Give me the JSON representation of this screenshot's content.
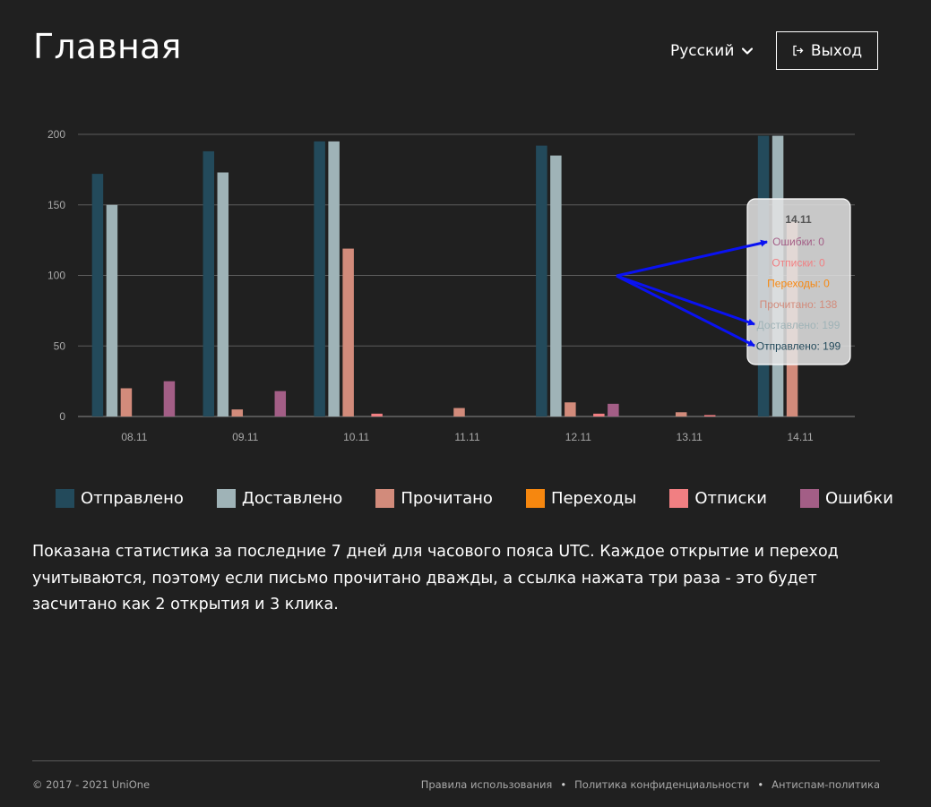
{
  "header": {
    "title": "Главная",
    "language_label": "Русский",
    "logout_label": "Выход"
  },
  "chart_data": {
    "type": "bar",
    "categories": [
      "08.11",
      "09.11",
      "10.11",
      "11.11",
      "12.11",
      "13.11",
      "14.11"
    ],
    "series": [
      {
        "name": "Отправлено",
        "color": "#234a5b",
        "values": [
          172,
          188,
          195,
          0,
          192,
          0,
          199
        ]
      },
      {
        "name": "Доставлено",
        "color": "#9fb3b7",
        "values": [
          150,
          173,
          195,
          0,
          185,
          0,
          199
        ]
      },
      {
        "name": "Прочитано",
        "color": "#d28b7b",
        "values": [
          20,
          5,
          119,
          6,
          10,
          3,
          138
        ]
      },
      {
        "name": "Переходы",
        "color": "#f6870f",
        "values": [
          0,
          0,
          0,
          0,
          0,
          0,
          0
        ]
      },
      {
        "name": "Отписки",
        "color": "#f17f82",
        "values": [
          0,
          0,
          2,
          0,
          2,
          1,
          0
        ]
      },
      {
        "name": "Ошибки",
        "color": "#a35e86",
        "values": [
          25,
          18,
          0,
          0,
          9,
          0,
          0
        ]
      }
    ],
    "y_ticks": [
      "0",
      "50",
      "100",
      "150",
      "200"
    ],
    "ylim": [
      0,
      200
    ],
    "grid": true,
    "legend_position": "bottom",
    "tooltip": {
      "title": "14.11",
      "rows": [
        {
          "label": "Ошибки",
          "value": "0",
          "color": "#a35e86"
        },
        {
          "label": "Отписки",
          "value": "0",
          "color": "#f17f82"
        },
        {
          "label": "Переходы",
          "value": "0",
          "color": "#f6870f"
        },
        {
          "label": "Прочитано",
          "value": "138",
          "color": "#d28b7b"
        },
        {
          "label": "Доставлено",
          "value": "199",
          "color": "#9fb3b7"
        },
        {
          "label": "Отправлено",
          "value": "199",
          "color": "#234a5b"
        }
      ]
    }
  },
  "description": "Показана статистика за последние 7 дней для часового пояса UTC. Каждое открытие и переход учитываются, поэтому если письмо прочитано дважды, а ссылка нажата три раза - это будет засчитано как 2 открытия и 3 клика.",
  "footer": {
    "copyright": "© 2017 - 2021 UniOne",
    "links": [
      {
        "label": "Правила использования"
      },
      {
        "label": "Политика конфиденциальности"
      },
      {
        "label": "Антиспам-политика"
      }
    ],
    "separator": "•"
  },
  "icons": {
    "language_dropdown": "chevron-down-icon",
    "logout": "logout-icon"
  }
}
